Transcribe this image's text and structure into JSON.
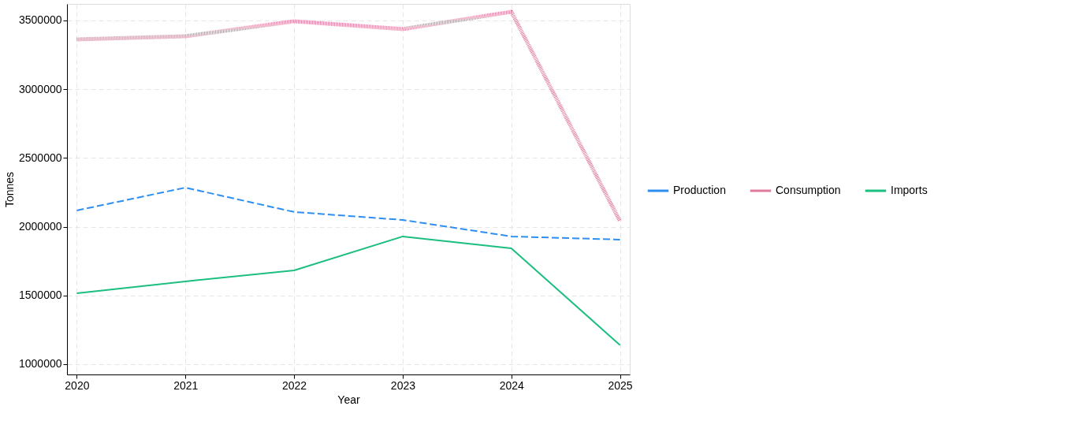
{
  "chart_data": {
    "type": "line",
    "xlabel": "Year",
    "ylabel": "Tonnes",
    "x": [
      2020,
      2021,
      2022,
      2023,
      2024,
      2025
    ],
    "xlim": [
      2019.91,
      2025.09
    ],
    "xticks": [
      2020,
      2021,
      2022,
      2023,
      2024,
      2025
    ],
    "ylim": [
      925000,
      3620000
    ],
    "yticks": [
      1000000,
      1500000,
      2000000,
      2500000,
      3000000,
      3500000
    ],
    "grid": true,
    "legend": "right",
    "marker": "none",
    "series": [
      {
        "name": "Production",
        "color": "#2f8ff0",
        "line_style": "dashed",
        "values": [
          2118000,
          2284000,
          2107000,
          2049000,
          1929000,
          1906000
        ]
      },
      {
        "name": "Consumption",
        "color": "#e07a9c",
        "line_style": "dotted",
        "values": [
          3362000,
          3385000,
          3494000,
          3437000,
          3563000,
          2040000
        ]
      },
      {
        "name": "Imports",
        "color": "#1cbf7f",
        "line_style": "solid",
        "values": [
          1516000,
          1602000,
          1682000,
          1929000,
          1843000,
          1138000
        ]
      }
    ]
  }
}
